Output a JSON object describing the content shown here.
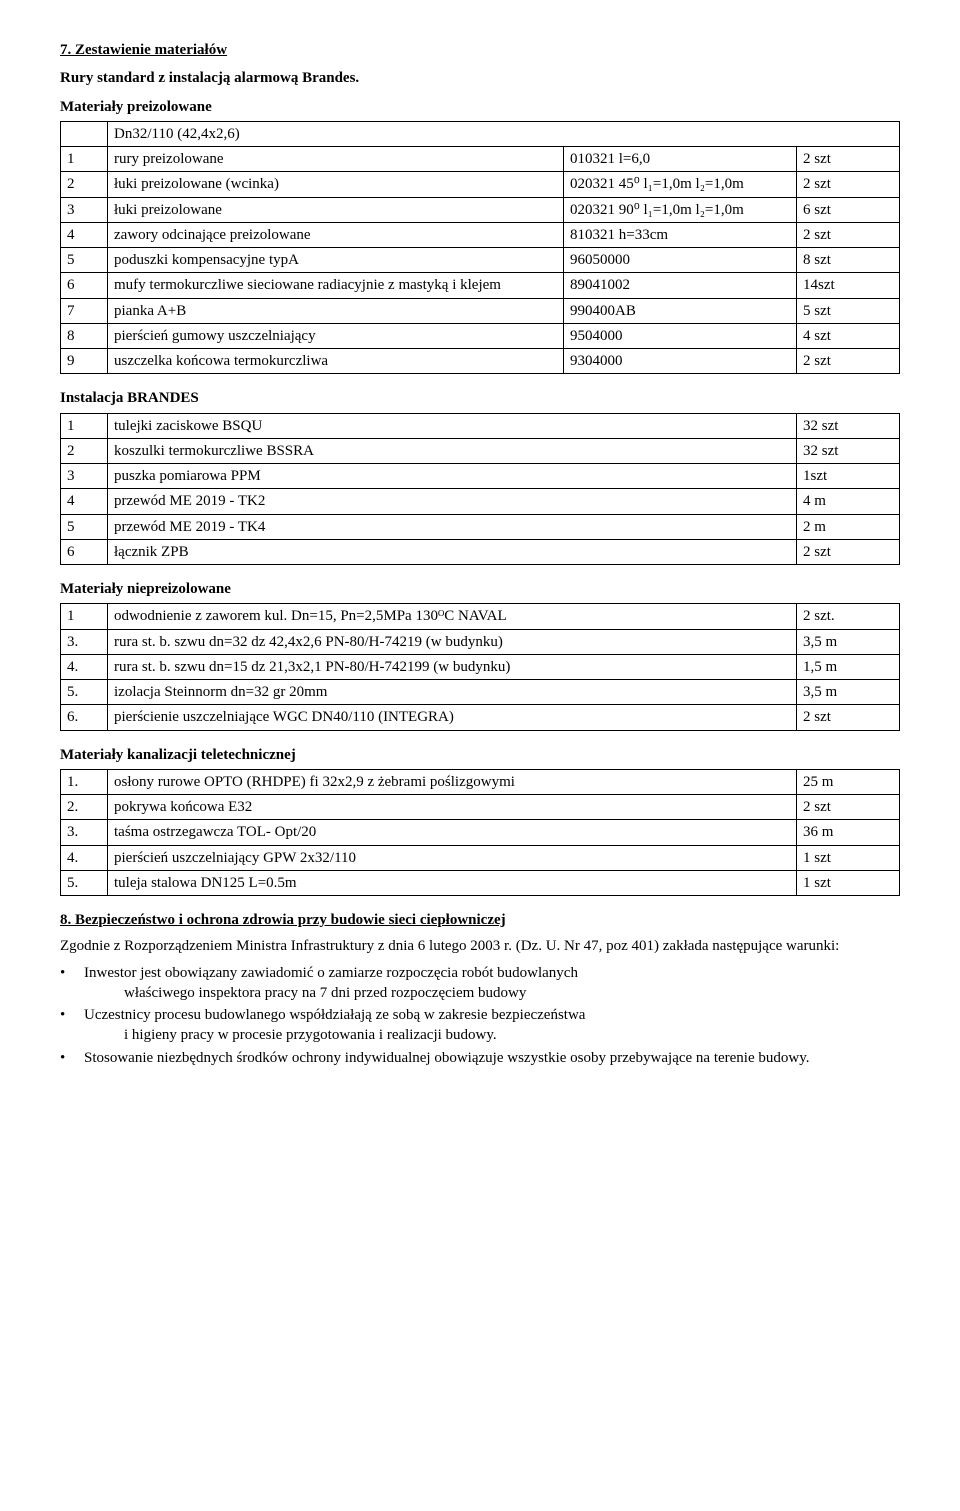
{
  "heading7": "7. Zestawienie materiałów",
  "subheadingPipes": "Rury standard z instalacją alarmową Brandes.",
  "preizoTitle": "Materiały preizolowane",
  "preizoHeader": "Dn32/110 (42,4x2,6)",
  "preizoRows": [
    {
      "n": "1",
      "desc": "rury preizolowane",
      "code": "010321   l=6,0",
      "qty": "2 szt"
    },
    {
      "n": "2",
      "desc": "łuki preizolowane (wcinka)",
      "code": "020321 45⁰  l₁=1,0m  l₂=1,0m",
      "qty": "2 szt"
    },
    {
      "n": "3",
      "desc": "łuki preizolowane",
      "code": "020321 90⁰  l₁=1,0m  l₂=1,0m",
      "qty": "6 szt"
    },
    {
      "n": "4",
      "desc": "zawory odcinające preizolowane",
      "code": "810321  h=33cm",
      "qty": "2 szt"
    },
    {
      "n": "5",
      "desc": "poduszki kompensacyjne typA",
      "code": "96050000",
      "qty": "8 szt"
    },
    {
      "n": "6",
      "desc": "mufy termokurczliwe sieciowane radiacyjnie z mastyką i klejem",
      "code": "89041002",
      "qty": "14szt"
    },
    {
      "n": "7",
      "desc": "pianka A+B",
      "code": "990400AB",
      "qty": "5 szt"
    },
    {
      "n": "8",
      "desc": "pierścień gumowy uszczelniający",
      "code": "9504000",
      "qty": "4 szt"
    },
    {
      "n": "9",
      "desc": "uszczelka końcowa termokurczliwa",
      "code": "9304000",
      "qty": "2 szt"
    }
  ],
  "brandesTitle": "Instalacja  BRANDES",
  "brandesRows": [
    {
      "n": "1",
      "desc": "tulejki zaciskowe BSQU",
      "qty": "32 szt"
    },
    {
      "n": "2",
      "desc": "koszulki termokurczliwe BSSRA",
      "qty": "32 szt"
    },
    {
      "n": "3",
      "desc": "puszka pomiarowa PPM",
      "qty": "1szt"
    },
    {
      "n": "4",
      "desc": "przewód ME 2019 - TK2",
      "qty": "4 m"
    },
    {
      "n": "5",
      "desc": "przewód ME 2019 - TK4",
      "qty": "2 m"
    },
    {
      "n": "6",
      "desc": "łącznik ZPB",
      "qty": "2 szt"
    }
  ],
  "niepreizoTitle": "Materiały niepreizolowane",
  "niepreizoRows": [
    {
      "n": "1",
      "desc": "odwodnienie z zaworem kul. Dn=15, Pn=2,5MPa 130ᴼC NAVAL",
      "qty": "2 szt."
    },
    {
      "n": "3.",
      "desc": "rura st. b. szwu dn=32  dz 42,4x2,6  PN-80/H-74219 (w budynku)",
      "qty": "3,5 m"
    },
    {
      "n": "4.",
      "desc": "rura st. b. szwu dn=15  dz 21,3x2,1  PN-80/H-742199 (w budynku)",
      "qty": "1,5 m"
    },
    {
      "n": "5.",
      "desc": "izolacja Steinnorm dn=32 gr 20mm",
      "qty": "3,5 m"
    },
    {
      "n": "6.",
      "desc": "pierścienie uszczelniające WGC DN40/110 (INTEGRA)",
      "qty": "2 szt"
    }
  ],
  "teleTitle": "Materiały kanalizacji teletechnicznej",
  "teleRows": [
    {
      "n": "1.",
      "desc": "osłony rurowe OPTO (RHDPE) fi 32x2,9 z żebrami  poślizgowymi",
      "qty": "25 m"
    },
    {
      "n": "2.",
      "desc": "pokrywa końcowa E32",
      "qty": "2 szt"
    },
    {
      "n": "3.",
      "desc": "taśma ostrzegawcza TOL- Opt/20",
      "qty": "36 m"
    },
    {
      "n": "4.",
      "desc": "pierścień uszczelniający GPW 2x32/110",
      "qty": "1 szt"
    },
    {
      "n": "5.",
      "desc": "tuleja stalowa DN125 L=0.5m",
      "qty": "1 szt"
    }
  ],
  "heading8": "8. Bezpieczeństwo i ochrona zdrowia przy budowie sieci ciepłowniczej",
  "para8a": "Zgodnie z Rozporządzeniem Ministra Infrastruktury z dnia 6 lutego 2003 r. (Dz. U. Nr 47, poz 401) zakłada następujące warunki:",
  "bullets": [
    {
      "lead": "Inwestor jest obowiązany zawiadomić o zamiarze rozpoczęcia robót budowlanych",
      "sub": "właściwego inspektora pracy na 7 dni przed rozpoczęciem budowy"
    },
    {
      "lead": "Uczestnicy procesu budowlanego współdziałają ze sobą w zakresie bezpieczeństwa",
      "sub": "i higieny pracy w procesie przygotowania i realizacji budowy."
    },
    {
      "lead": "Stosowanie niezbędnych środków ochrony indywidualnej obowiązuje wszystkie osoby przebywające na terenie budowy.",
      "sub": ""
    }
  ]
}
